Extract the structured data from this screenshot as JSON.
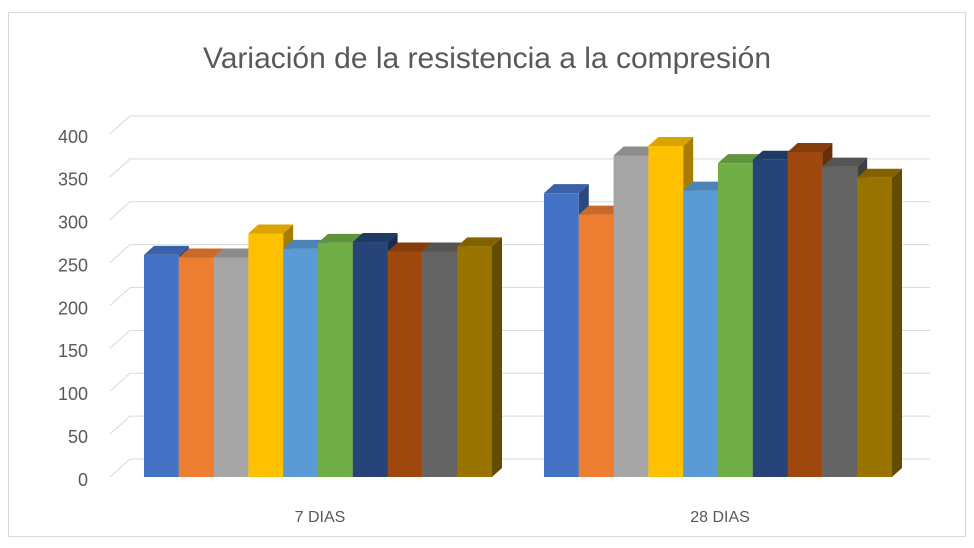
{
  "chart_data": {
    "type": "bar3d",
    "title": "Variación de la resistencia a la compresión",
    "categories": [
      "7 DIAS",
      "28 DIAS"
    ],
    "series": [
      {
        "color": "#4472c4",
        "values": [
          259,
          331
        ]
      },
      {
        "color": "#ed7d31",
        "values": [
          256,
          306
        ]
      },
      {
        "color": "#a5a5a5",
        "values": [
          256,
          375
        ]
      },
      {
        "color": "#ffc000",
        "values": [
          284,
          386
        ]
      },
      {
        "color": "#5b9bd5",
        "values": [
          266,
          334
        ]
      },
      {
        "color": "#70ad47",
        "values": [
          273,
          366
        ]
      },
      {
        "color": "#264478",
        "values": [
          274,
          370
        ]
      },
      {
        "color": "#9e480e",
        "values": [
          263,
          379
        ]
      },
      {
        "color": "#636363",
        "values": [
          263,
          362
        ]
      },
      {
        "color": "#997300",
        "values": [
          269,
          349
        ]
      }
    ],
    "ylim": [
      0,
      400
    ],
    "yticks": [
      0,
      50,
      100,
      150,
      200,
      250,
      300,
      350,
      400
    ],
    "grid": true
  }
}
